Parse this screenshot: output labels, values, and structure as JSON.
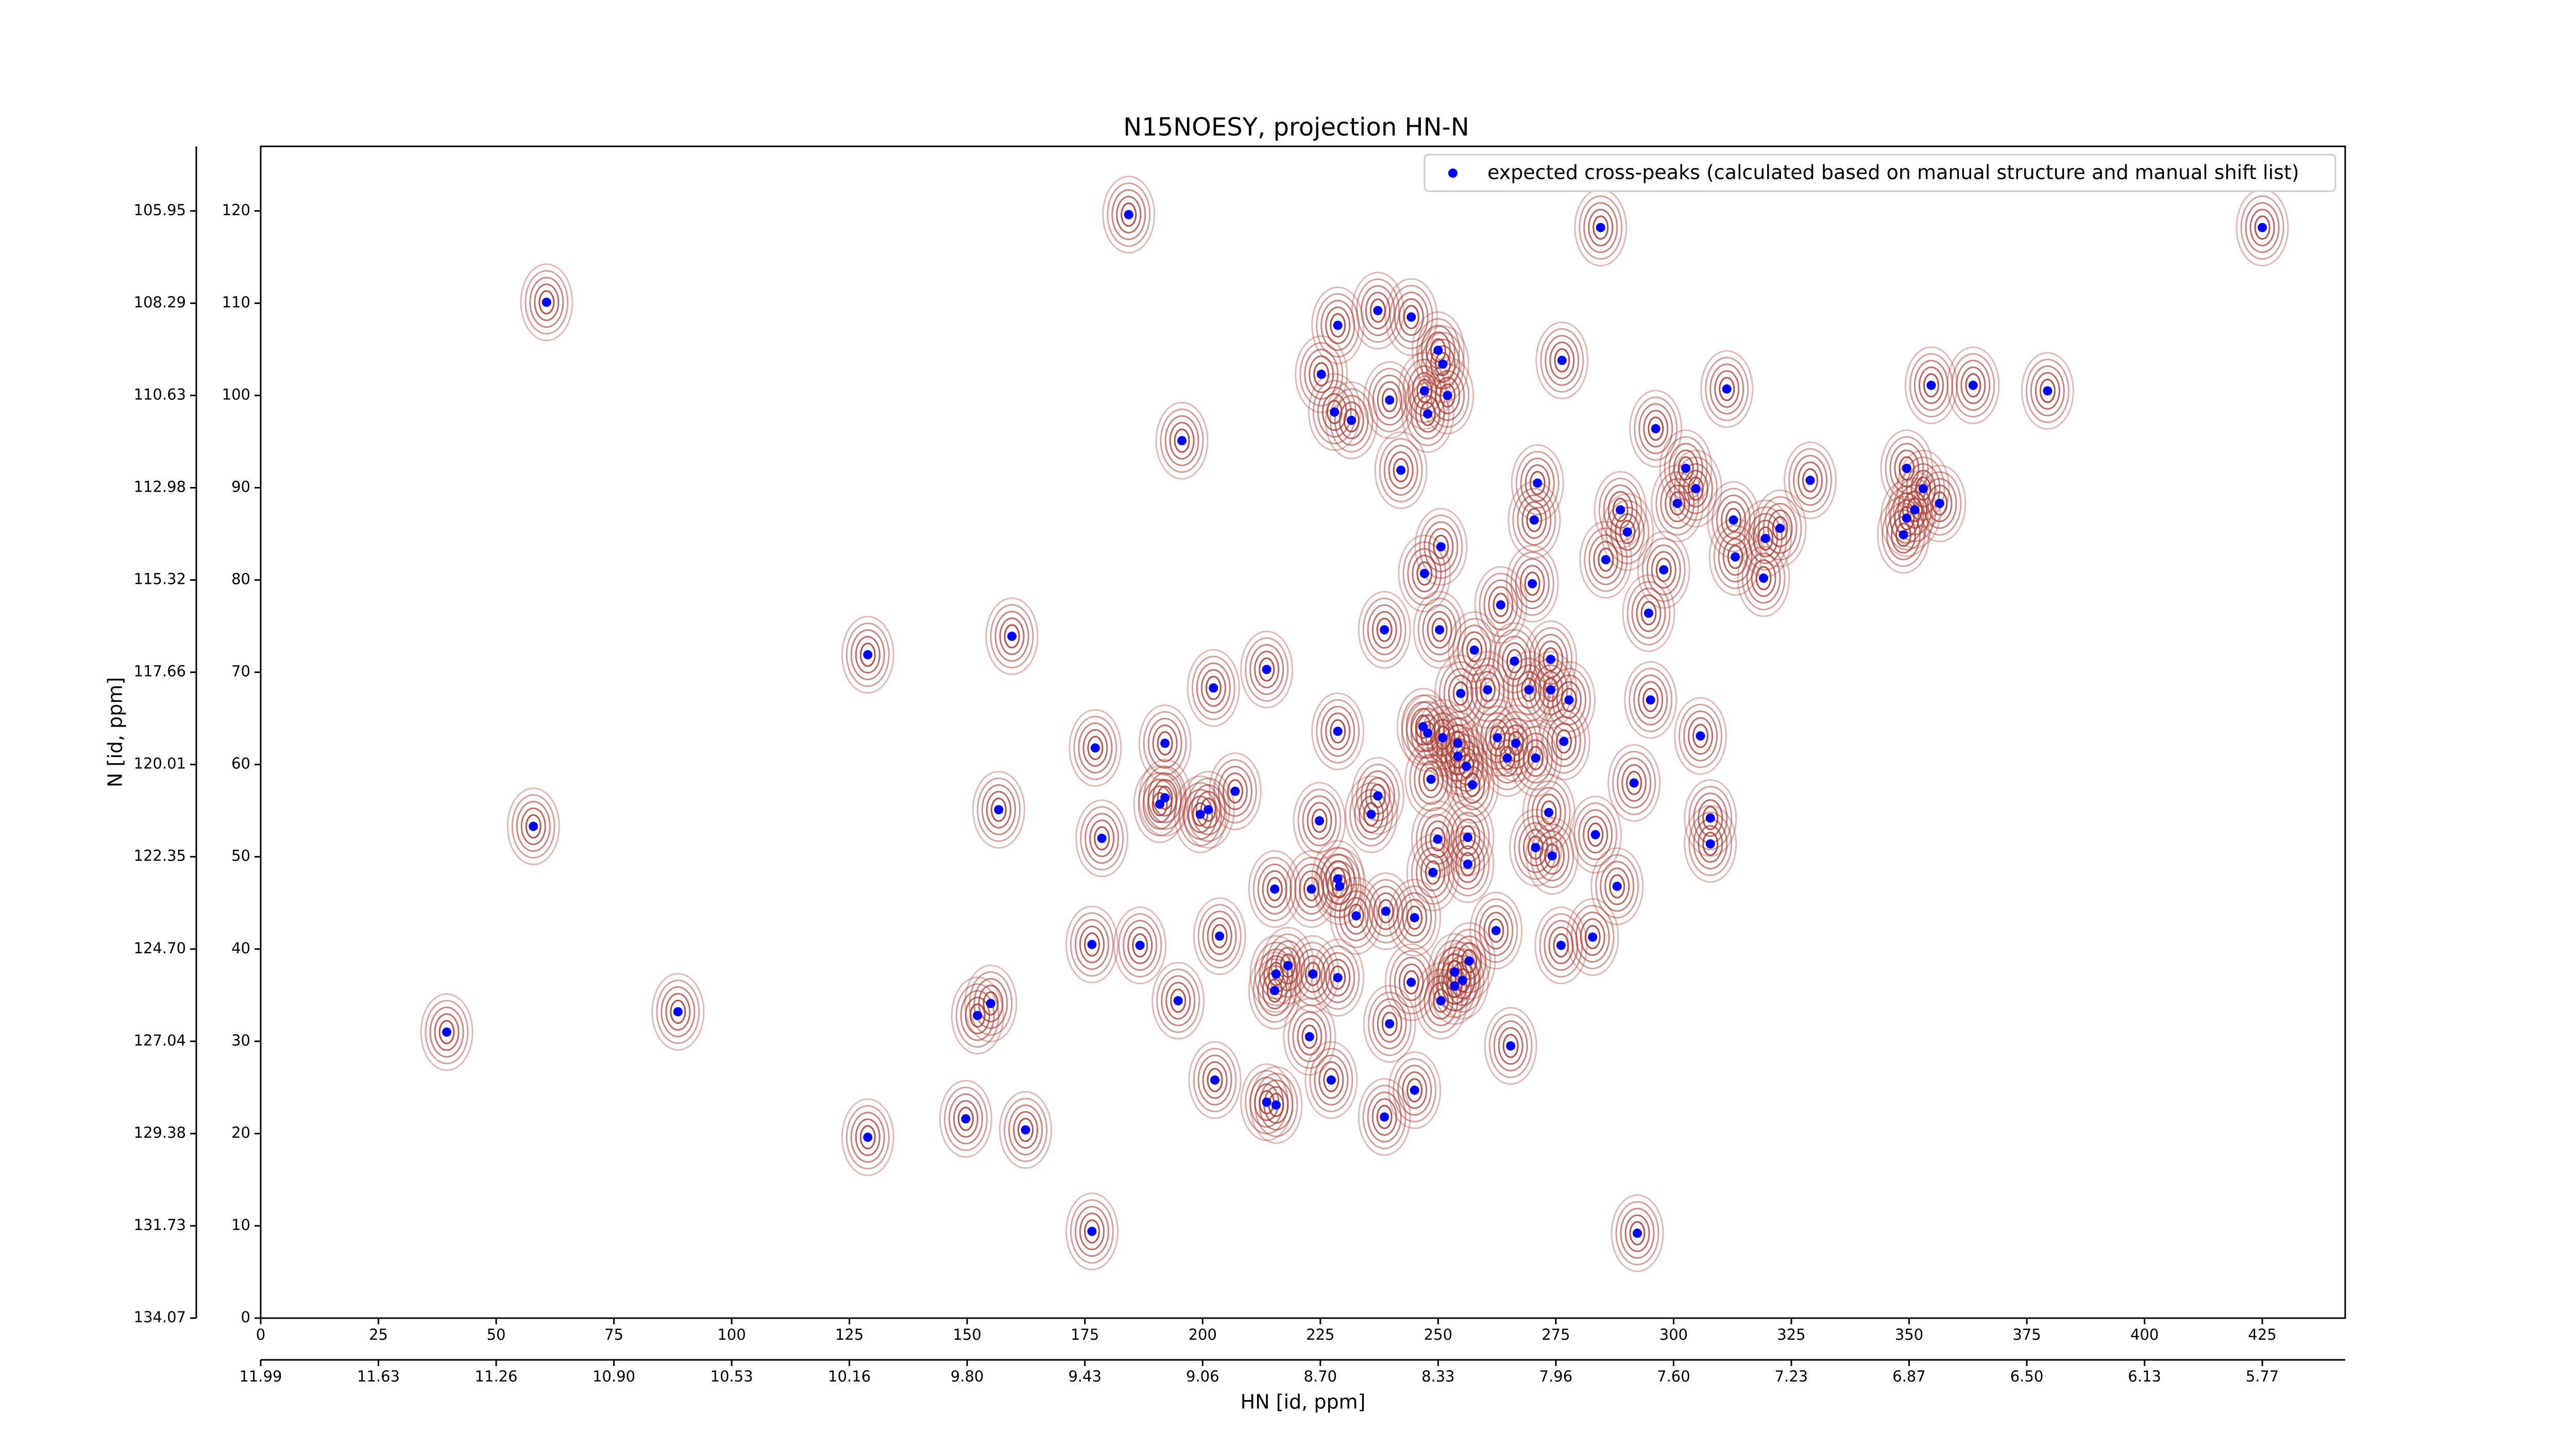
{
  "chart_data": {
    "type": "scatter",
    "title": "N15NOESY, projection HN-N",
    "xlabel": "HN [id, ppm]",
    "ylabel": "N [id, ppm]",
    "xlim": [
      0,
      442.6
    ],
    "ylim": [
      0,
      127
    ],
    "xticks": [
      0,
      25,
      50,
      75,
      100,
      125,
      150,
      175,
      200,
      225,
      250,
      275,
      300,
      325,
      350,
      375,
      400,
      425
    ],
    "yticks": [
      0,
      10,
      20,
      30,
      40,
      50,
      60,
      70,
      80,
      90,
      100,
      110,
      120
    ],
    "x2ticks": [
      {
        "value": 0,
        "label": "11.99"
      },
      {
        "value": 25,
        "label": "11.63"
      },
      {
        "value": 50,
        "label": "11.26"
      },
      {
        "value": 75,
        "label": "10.90"
      },
      {
        "value": 100,
        "label": "10.53"
      },
      {
        "value": 125,
        "label": "10.16"
      },
      {
        "value": 150,
        "label": "9.80"
      },
      {
        "value": 175,
        "label": "9.43"
      },
      {
        "value": 200,
        "label": "9.06"
      },
      {
        "value": 225,
        "label": "8.70"
      },
      {
        "value": 250,
        "label": "8.33"
      },
      {
        "value": 275,
        "label": "7.96"
      },
      {
        "value": 300,
        "label": "7.60"
      },
      {
        "value": 325,
        "label": "7.23"
      },
      {
        "value": 350,
        "label": "6.87"
      },
      {
        "value": 375,
        "label": "6.50"
      },
      {
        "value": 400,
        "label": "6.13"
      },
      {
        "value": 425,
        "label": "5.77"
      }
    ],
    "y2ticks": [
      {
        "value": 120,
        "label": "105.95"
      },
      {
        "value": 110,
        "label": "108.29"
      },
      {
        "value": 100,
        "label": "110.63"
      },
      {
        "value": 90,
        "label": "112.98"
      },
      {
        "value": 80,
        "label": "115.32"
      },
      {
        "value": 70,
        "label": "117.66"
      },
      {
        "value": 60,
        "label": "120.01"
      },
      {
        "value": 50,
        "label": "122.35"
      },
      {
        "value": 40,
        "label": "124.70"
      },
      {
        "value": 30,
        "label": "127.04"
      },
      {
        "value": 20,
        "label": "129.38"
      },
      {
        "value": 10,
        "label": "131.73"
      },
      {
        "value": 0,
        "label": "134.07"
      }
    ],
    "legend": "upper right",
    "contour_color": "#a83a30",
    "series": [
      {
        "name": "expected cross-peaks (calculated based on manual structure and manual shift list)",
        "color": "#0000ff",
        "x": [
          184.3,
          284.5,
          425,
          60.7,
          237.2,
          244.3,
          228.7,
          250,
          276.3,
          251,
          225.2,
          247.1,
          354.7,
          363.6,
          311.3,
          379.4,
          252,
          239.7,
          228,
          231.6,
          247.8,
          195.6,
          296.2,
          242.1,
          302.6,
          349.5,
          271.1,
          329,
          304.7,
          353,
          300.8,
          288.7,
          356.5,
          351.2,
          270.4,
          312.7,
          322.6,
          349.5,
          319.5,
          290.2,
          348.8,
          250.6,
          285.6,
          313.1,
          247.1,
          297.9,
          270,
          319.1,
          263.3,
          294.7,
          238.6,
          250.3,
          159.5,
          257.7,
          128.9,
          266.2,
          273.9,
          213.6,
          202.3,
          260.5,
          269.3,
          273.9,
          254.8,
          277.8,
          295.1,
          305.7,
          228.7,
          246.8,
          247.8,
          251,
          254.2,
          192,
          177.2,
          262.6,
          266.5,
          276.7,
          254.2,
          270.7,
          264.7,
          256,
          248.5,
          257.3,
          291.6,
          206.9,
          192,
          190.9,
          201.2,
          156.7,
          199.5,
          237.2,
          235.8,
          273.5,
          224.8,
          307.8,
          57.9,
          178.6,
          283.4,
          307.8,
          249.9,
          256.3,
          270.7,
          274.2,
          256.3,
          248.9,
          228.7,
          229.1,
          215.3,
          223.1,
          288,
          238.9,
          232.6,
          245,
          203.6,
          262.3,
          276.1,
          282.8,
          176.5,
          186.7,
          256.6,
          218.1,
          215.6,
          223.4,
          228.7,
          253.5,
          255.2,
          244.3,
          253.5,
          215.3,
          250.6,
          194.8,
          155,
          152.2,
          88.6,
          239.7,
          39.5,
          222.7,
          265.4,
          202.6,
          227.3,
          245,
          213.6,
          215.6,
          149.7,
          162.4,
          238.6,
          128.9,
          176.5,
          292.3
        ],
        "values": [
          119.6,
          118.2,
          118.2,
          110.1,
          109.2,
          108.5,
          107.6,
          104.9,
          103.8,
          103.4,
          102.3,
          100.5,
          101.1,
          101.1,
          100.7,
          100.5,
          100,
          99.5,
          98.2,
          97.3,
          98,
          95.1,
          96.4,
          91.9,
          92.1,
          92.1,
          90.5,
          90.8,
          89.9,
          89.9,
          88.3,
          87.6,
          88.3,
          87.6,
          86.5,
          86.5,
          85.6,
          86.7,
          84.5,
          85.2,
          84.9,
          83.6,
          82.2,
          82.5,
          80.7,
          81.1,
          79.6,
          80.2,
          77.3,
          76.4,
          74.6,
          74.6,
          73.9,
          72.4,
          71.9,
          71.2,
          71.4,
          70.3,
          68.3,
          68.1,
          68.1,
          68.1,
          67.7,
          67,
          67,
          63.1,
          63.6,
          64.1,
          63.4,
          62.9,
          62.3,
          62.3,
          61.8,
          62.9,
          62.3,
          62.5,
          60.9,
          60.7,
          60.7,
          59.8,
          58.4,
          57.8,
          58,
          57.1,
          56.4,
          55.7,
          55.1,
          55.1,
          54.6,
          56.6,
          54.6,
          54.8,
          53.9,
          54.2,
          53.3,
          52,
          52.4,
          51.4,
          51.9,
          52.1,
          51,
          50.1,
          49.2,
          48.3,
          47.6,
          46.8,
          46.5,
          46.5,
          46.8,
          44.1,
          43.6,
          43.4,
          41.4,
          42,
          40.4,
          41.3,
          40.5,
          40.4,
          38.7,
          38.2,
          37.3,
          37.3,
          36.9,
          37.5,
          36.6,
          36.4,
          36,
          35.5,
          34.4,
          34.4,
          34.1,
          32.8,
          33.2,
          31.9,
          31,
          30.5,
          29.5,
          25.8,
          25.8,
          24.7,
          23.4,
          23.1,
          21.6,
          20.4,
          21.8,
          19.6,
          9.4,
          9.2
        ]
      }
    ]
  }
}
